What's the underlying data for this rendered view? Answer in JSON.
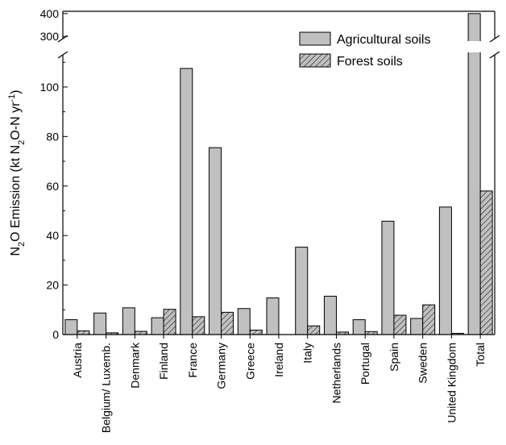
{
  "chart_data": {
    "type": "bar",
    "title": "",
    "xlabel": "",
    "ylabel": {
      "parts": [
        {
          "t": "N",
          "sub": false,
          "sup": false
        },
        {
          "t": "2",
          "sub": true,
          "sup": false
        },
        {
          "t": "O Emission (kt N",
          "sub": false,
          "sup": false
        },
        {
          "t": "2",
          "sub": true,
          "sup": false
        },
        {
          "t": "O-N yr",
          "sub": false,
          "sup": false
        },
        {
          "t": "-1",
          "sub": false,
          "sup": true
        },
        {
          "t": ")",
          "sub": false,
          "sup": false
        }
      ]
    },
    "categories": [
      "Austria",
      "Belgium/ Luxemb.",
      "Denmark",
      "Finland",
      "France",
      "Germany",
      "Greece",
      "Ireland",
      "Italy",
      "Netherlands",
      "Portugal",
      "Spain",
      "Sweden",
      "United Kingdom",
      "Total"
    ],
    "series": [
      {
        "name": "Agricultural soils",
        "fill": "#c0c0c0",
        "pattern": "solid",
        "values": [
          6.0,
          8.7,
          10.8,
          6.8,
          107.5,
          75.5,
          10.5,
          14.8,
          35.3,
          15.5,
          6.0,
          45.8,
          6.5,
          51.5,
          400
        ]
      },
      {
        "name": "Forest soils",
        "fill": "#c0c0c0",
        "pattern": "hatched",
        "values": [
          1.5,
          0.7,
          1.3,
          10.2,
          7.2,
          9.0,
          1.8,
          0.0,
          3.5,
          1.0,
          1.2,
          7.8,
          12.0,
          0.5,
          58.0
        ]
      }
    ],
    "y_axis": {
      "lower_range": [
        0,
        113
      ],
      "lower_ticks": [
        0,
        20,
        40,
        60,
        80,
        100
      ],
      "break": true,
      "upper_range": [
        290,
        410
      ],
      "upper_ticks": [
        300,
        400
      ]
    },
    "grid": false,
    "legend_position": "top-right",
    "colors": {
      "bar_fill": "#c0c0c0",
      "bar_stroke": "#000000",
      "hatch": "#000000"
    }
  }
}
